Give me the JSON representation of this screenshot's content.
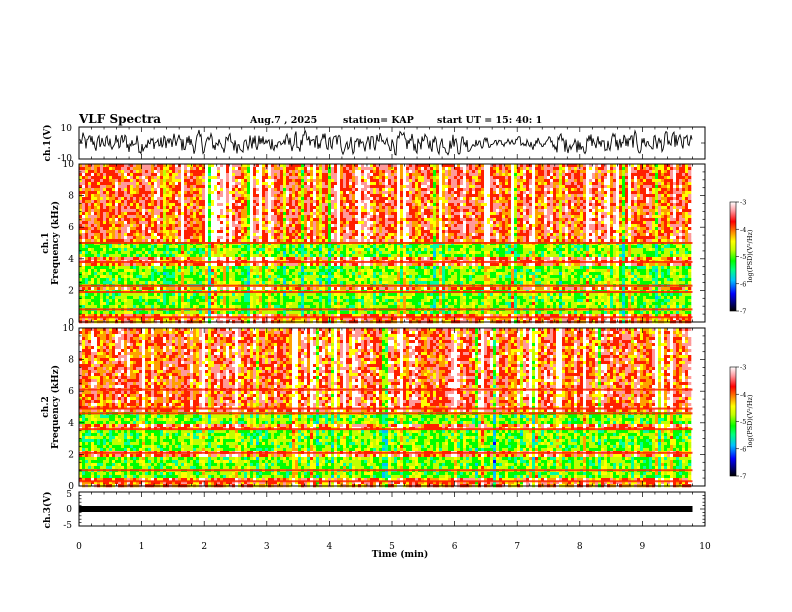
{
  "header": {
    "title": "VLF Spectra",
    "date": "Aug.7 , 2025",
    "station": "station= KAP",
    "start": "start UT = 15: 40: 1"
  },
  "chart_data": [
    {
      "type": "line",
      "name": "ch1-waveform",
      "ylabel": "ch.1(V)",
      "ylim": [
        -10,
        10
      ],
      "yticks": [
        "10",
        "-10"
      ],
      "x_end_min": 9.8
    },
    {
      "type": "heatmap",
      "name": "ch1-spectrogram",
      "ylabel_top": "ch.1",
      "ylabel": "Frequency (kHz)",
      "ylim": [
        0,
        10
      ],
      "yticks": [
        "0",
        "2",
        "4",
        "6",
        "8",
        "10"
      ],
      "x_end_min": 9.8,
      "green_bands_khz": [
        [
          0.6,
          2.0
        ],
        [
          2.3,
          3.6
        ],
        [
          4.1,
          5.0
        ]
      ],
      "lines_khz": [
        0.3,
        0.8,
        1.9,
        2.3,
        3.8,
        5.0
      ],
      "colorbar": {
        "label": "log(PSD)(V²/Hz)",
        "ticks": [
          "-3",
          "-4",
          "-5",
          "-6",
          "-7"
        ],
        "range": [
          -7,
          -3
        ]
      }
    },
    {
      "type": "heatmap",
      "name": "ch2-spectrogram",
      "ylabel_top": "ch.2",
      "ylabel": "Frequency (kHz)",
      "ylim": [
        0,
        10
      ],
      "yticks": [
        "0",
        "2",
        "4",
        "6",
        "8",
        "10"
      ],
      "x_end_min": 9.8,
      "green_bands_khz": [
        [
          0.5,
          1.8
        ],
        [
          2.2,
          3.6
        ],
        [
          4.0,
          4.6
        ]
      ],
      "lines_khz": [
        0.3,
        1.0,
        2.1,
        3.6,
        4.6,
        4.9,
        6.1
      ],
      "colorbar": {
        "label": "log(PSD)(V²/Hz)",
        "ticks": [
          "-3",
          "-4",
          "-5",
          "-6",
          "-7"
        ],
        "range": [
          -7,
          -3
        ]
      }
    },
    {
      "type": "line",
      "name": "ch3-signal",
      "ylabel": "ch.3(V)",
      "ylim": [
        -5,
        5
      ],
      "yticks": [
        "5",
        "0",
        "-5"
      ],
      "value_v": 0,
      "x_end_min": 9.8
    }
  ],
  "xaxis": {
    "label": "Time (min)",
    "range": [
      0,
      10
    ],
    "ticks": [
      "0",
      "1",
      "2",
      "3",
      "4",
      "5",
      "6",
      "7",
      "8",
      "9",
      "10"
    ]
  },
  "colors": {
    "spectrum": [
      "#000080",
      "#0000ff",
      "#00c0ff",
      "#00ffa0",
      "#00ff00",
      "#c0ff00",
      "#ffff00",
      "#ffa000",
      "#ff2000",
      "#ff9999",
      "#ffffff"
    ]
  }
}
